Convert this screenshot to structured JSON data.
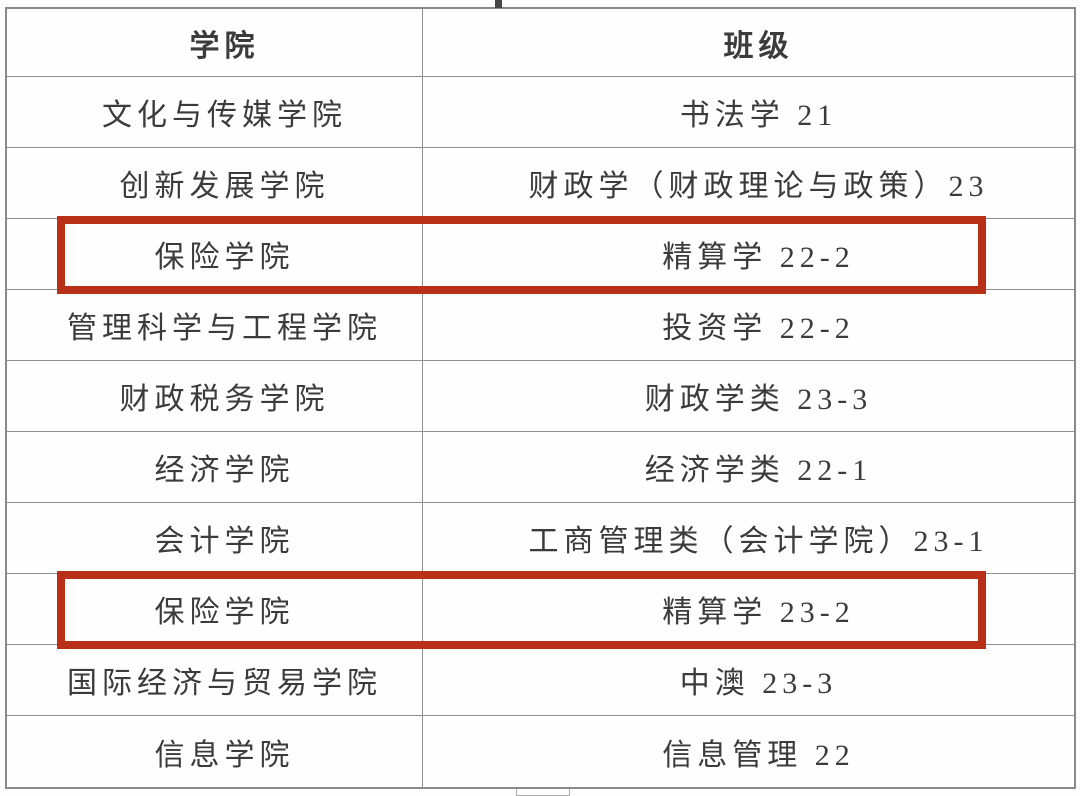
{
  "table": {
    "headers": [
      "学院",
      "班级"
    ],
    "rows": [
      {
        "college": "文化与传媒学院",
        "class": "书法学 21",
        "highlighted": false
      },
      {
        "college": "创新发展学院",
        "class": "财政学（财政理论与政策）23",
        "highlighted": false
      },
      {
        "college": "保险学院",
        "class": "精算学 22-2",
        "highlighted": true
      },
      {
        "college": "管理科学与工程学院",
        "class": "投资学 22-2",
        "highlighted": false
      },
      {
        "college": "财政税务学院",
        "class": "财政学类 23-3",
        "highlighted": false
      },
      {
        "college": "经济学院",
        "class": "经济学类 22-1",
        "highlighted": false
      },
      {
        "college": "会计学院",
        "class": "工商管理类（会计学院）23-1",
        "highlighted": false
      },
      {
        "college": "保险学院",
        "class": "精算学 23-2",
        "highlighted": true
      },
      {
        "college": "国际经济与贸易学院",
        "class": "中澳 23-3",
        "highlighted": false
      },
      {
        "college": "信息学院",
        "class": "信息管理 22",
        "highlighted": false
      }
    ]
  },
  "colors": {
    "highlight_border": "#b93018",
    "grid_line": "#909090",
    "text": "#3b3b3b"
  }
}
